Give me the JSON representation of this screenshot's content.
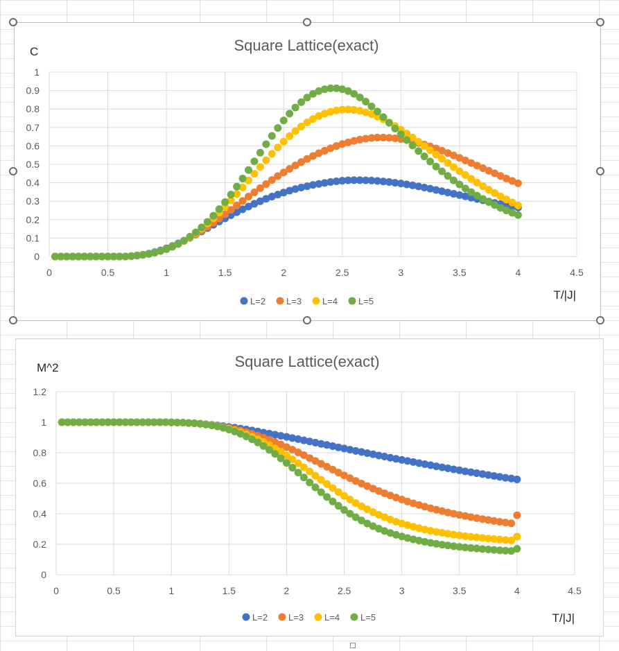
{
  "chart_data": [
    {
      "type": "scatter",
      "title": "Square Lattice(exact)",
      "xlabel": "T/|J|",
      "ylabel": "C",
      "xlim": [
        0,
        4.5
      ],
      "ylim": [
        0,
        1
      ],
      "xticks": [
        "0",
        "0.5",
        "1",
        "1.5",
        "2",
        "2.5",
        "3",
        "3.5",
        "4",
        "4.5"
      ],
      "yticks": [
        "0",
        "0.1",
        "0.2",
        "0.3",
        "0.4",
        "0.5",
        "0.6",
        "0.7",
        "0.8",
        "0.9",
        "1"
      ],
      "grid": true,
      "legend": "bottom",
      "x": [
        0.05,
        0.1,
        0.15,
        0.2,
        0.25,
        0.3,
        0.35,
        0.4,
        0.45,
        0.5,
        0.55,
        0.6,
        0.65,
        0.7,
        0.75,
        0.8,
        0.85,
        0.9,
        0.95,
        1.0,
        1.05,
        1.1,
        1.15,
        1.2,
        1.25,
        1.3,
        1.35,
        1.4,
        1.45,
        1.5,
        1.55,
        1.6,
        1.65,
        1.7,
        1.75,
        1.8,
        1.85,
        1.9,
        1.95,
        2.0,
        2.05,
        2.1,
        2.15,
        2.2,
        2.25,
        2.3,
        2.35,
        2.4,
        2.45,
        2.5,
        2.55,
        2.6,
        2.65,
        2.7,
        2.75,
        2.8,
        2.85,
        2.9,
        2.95,
        3.0,
        3.05,
        3.1,
        3.15,
        3.2,
        3.25,
        3.3,
        3.35,
        3.4,
        3.45,
        3.5,
        3.55,
        3.6,
        3.65,
        3.7,
        3.75,
        3.8,
        3.85,
        3.9,
        3.95,
        4.0
      ],
      "series": [
        {
          "name": "L=2",
          "color": "#4472c4",
          "values": [
            0,
            0,
            0,
            0,
            0,
            0,
            0,
            0,
            0,
            0,
            0,
            0,
            0,
            0.003,
            0.006,
            0.01,
            0.016,
            0.024,
            0.033,
            0.044,
            0.057,
            0.071,
            0.086,
            0.102,
            0.119,
            0.136,
            0.154,
            0.172,
            0.19,
            0.207,
            0.224,
            0.24,
            0.256,
            0.271,
            0.286,
            0.3,
            0.313,
            0.325,
            0.336,
            0.347,
            0.357,
            0.366,
            0.374,
            0.381,
            0.388,
            0.394,
            0.399,
            0.404,
            0.408,
            0.411,
            0.413,
            0.414,
            0.414,
            0.413,
            0.412,
            0.41,
            0.407,
            0.404,
            0.4,
            0.396,
            0.391,
            0.386,
            0.38,
            0.374,
            0.368,
            0.361,
            0.354,
            0.347,
            0.34,
            0.333,
            0.326,
            0.319,
            0.312,
            0.305,
            0.298,
            0.291,
            0.285,
            0.278,
            0.272,
            0.266
          ]
        },
        {
          "name": "L=3",
          "color": "#ed7d31",
          "values": [
            0,
            0,
            0,
            0,
            0,
            0,
            0,
            0,
            0,
            0,
            0,
            0,
            0,
            0.002,
            0.005,
            0.009,
            0.014,
            0.021,
            0.03,
            0.041,
            0.054,
            0.068,
            0.084,
            0.101,
            0.12,
            0.14,
            0.161,
            0.183,
            0.206,
            0.229,
            0.253,
            0.277,
            0.301,
            0.325,
            0.348,
            0.371,
            0.393,
            0.415,
            0.436,
            0.456,
            0.475,
            0.494,
            0.512,
            0.529,
            0.545,
            0.56,
            0.574,
            0.587,
            0.599,
            0.61,
            0.619,
            0.627,
            0.634,
            0.639,
            0.643,
            0.645,
            0.645,
            0.644,
            0.641,
            0.637,
            0.631,
            0.624,
            0.616,
            0.607,
            0.597,
            0.586,
            0.574,
            0.561,
            0.548,
            0.535,
            0.521,
            0.507,
            0.493,
            0.479,
            0.465,
            0.451,
            0.437,
            0.423,
            0.41,
            0.397
          ]
        },
        {
          "name": "L=4",
          "color": "#ffc000",
          "values": [
            0,
            0,
            0,
            0,
            0,
            0,
            0,
            0,
            0,
            0,
            0,
            0,
            0,
            0.002,
            0.005,
            0.009,
            0.014,
            0.021,
            0.03,
            0.04,
            0.053,
            0.068,
            0.085,
            0.105,
            0.127,
            0.151,
            0.178,
            0.207,
            0.238,
            0.27,
            0.304,
            0.339,
            0.375,
            0.412,
            0.449,
            0.486,
            0.522,
            0.557,
            0.591,
            0.623,
            0.653,
            0.68,
            0.705,
            0.727,
            0.746,
            0.762,
            0.775,
            0.785,
            0.792,
            0.796,
            0.797,
            0.795,
            0.79,
            0.782,
            0.772,
            0.759,
            0.744,
            0.727,
            0.708,
            0.688,
            0.667,
            0.645,
            0.622,
            0.599,
            0.576,
            0.553,
            0.53,
            0.507,
            0.485,
            0.463,
            0.442,
            0.421,
            0.401,
            0.381,
            0.362,
            0.344,
            0.326,
            0.309,
            0.293,
            0.277
          ]
        },
        {
          "name": "L=5",
          "color": "#70ad47",
          "values": [
            0,
            0,
            0,
            0,
            0,
            0,
            0,
            0,
            0,
            0,
            0,
            0,
            0,
            0.002,
            0.005,
            0.009,
            0.014,
            0.021,
            0.03,
            0.04,
            0.053,
            0.068,
            0.086,
            0.107,
            0.131,
            0.158,
            0.188,
            0.221,
            0.257,
            0.295,
            0.336,
            0.379,
            0.423,
            0.469,
            0.516,
            0.563,
            0.609,
            0.654,
            0.697,
            0.738,
            0.775,
            0.808,
            0.837,
            0.862,
            0.882,
            0.897,
            0.907,
            0.912,
            0.912,
            0.907,
            0.897,
            0.882,
            0.863,
            0.84,
            0.814,
            0.786,
            0.756,
            0.725,
            0.694,
            0.663,
            0.632,
            0.602,
            0.572,
            0.543,
            0.515,
            0.488,
            0.462,
            0.437,
            0.413,
            0.391,
            0.369,
            0.349,
            0.33,
            0.312,
            0.295,
            0.279,
            0.264,
            0.25,
            0.237,
            0.225
          ]
        }
      ]
    },
    {
      "type": "scatter",
      "title": "Square Lattice(exact)",
      "xlabel": "T/|J|",
      "ylabel": "M^2",
      "xlim": [
        0,
        4.5
      ],
      "ylim": [
        0,
        1.2
      ],
      "xticks": [
        "0",
        "0.5",
        "1",
        "1.5",
        "2",
        "2.5",
        "3",
        "3.5",
        "4",
        "4.5"
      ],
      "yticks": [
        "0",
        "0.2",
        "0.4",
        "0.6",
        "0.8",
        "1",
        "1.2"
      ],
      "grid": true,
      "legend": "bottom",
      "x": [
        0.05,
        0.1,
        0.15,
        0.2,
        0.25,
        0.3,
        0.35,
        0.4,
        0.45,
        0.5,
        0.55,
        0.6,
        0.65,
        0.7,
        0.75,
        0.8,
        0.85,
        0.9,
        0.95,
        1.0,
        1.05,
        1.1,
        1.15,
        1.2,
        1.25,
        1.3,
        1.35,
        1.4,
        1.45,
        1.5,
        1.55,
        1.6,
        1.65,
        1.7,
        1.75,
        1.8,
        1.85,
        1.9,
        1.95,
        2.0,
        2.05,
        2.1,
        2.15,
        2.2,
        2.25,
        2.3,
        2.35,
        2.4,
        2.45,
        2.5,
        2.55,
        2.6,
        2.65,
        2.7,
        2.75,
        2.8,
        2.85,
        2.9,
        2.95,
        3.0,
        3.05,
        3.1,
        3.15,
        3.2,
        3.25,
        3.3,
        3.35,
        3.4,
        3.45,
        3.5,
        3.55,
        3.6,
        3.65,
        3.7,
        3.75,
        3.8,
        3.85,
        3.9,
        3.95,
        4.0
      ],
      "series": [
        {
          "name": "L=2",
          "color": "#4472c4",
          "values": [
            1,
            1,
            1,
            1,
            1,
            1,
            1,
            1,
            1,
            1,
            1,
            1,
            1,
            1,
            1,
            1,
            1,
            1,
            1,
            0.999,
            0.998,
            0.997,
            0.995,
            0.993,
            0.99,
            0.987,
            0.983,
            0.979,
            0.974,
            0.969,
            0.964,
            0.958,
            0.952,
            0.946,
            0.939,
            0.932,
            0.925,
            0.918,
            0.911,
            0.904,
            0.896,
            0.889,
            0.881,
            0.874,
            0.866,
            0.858,
            0.851,
            0.843,
            0.835,
            0.828,
            0.82,
            0.812,
            0.805,
            0.797,
            0.79,
            0.782,
            0.775,
            0.767,
            0.76,
            0.753,
            0.746,
            0.739,
            0.732,
            0.725,
            0.718,
            0.711,
            0.704,
            0.698,
            0.691,
            0.685,
            0.678,
            0.672,
            0.666,
            0.66,
            0.654,
            0.648,
            0.642,
            0.636,
            0.631,
            0.625
          ]
        },
        {
          "name": "L=3",
          "color": "#ed7d31",
          "values": [
            1,
            1,
            1,
            1,
            1,
            1,
            1,
            1,
            1,
            1,
            1,
            1,
            1,
            1,
            1,
            1,
            1,
            1,
            1,
            0.999,
            0.998,
            0.997,
            0.995,
            0.993,
            0.99,
            0.986,
            0.981,
            0.976,
            0.969,
            0.962,
            0.954,
            0.945,
            0.935,
            0.924,
            0.912,
            0.899,
            0.885,
            0.87,
            0.854,
            0.837,
            0.82,
            0.802,
            0.784,
            0.765,
            0.746,
            0.727,
            0.708,
            0.689,
            0.67,
            0.651,
            0.633,
            0.615,
            0.598,
            0.581,
            0.565,
            0.549,
            0.534,
            0.52,
            0.506,
            0.493,
            0.48,
            0.468,
            0.457,
            0.446,
            0.436,
            0.426,
            0.417,
            0.408,
            0.4,
            0.392,
            0.385,
            0.378,
            0.371,
            0.365,
            0.359,
            0.353,
            0.347,
            0.342,
            0.337,
            0.39
          ]
        },
        {
          "name": "L=4",
          "color": "#ffc000",
          "values": [
            1,
            1,
            1,
            1,
            1,
            1,
            1,
            1,
            1,
            1,
            1,
            1,
            1,
            1,
            1,
            1,
            1,
            1,
            1,
            0.999,
            0.998,
            0.997,
            0.995,
            0.993,
            0.99,
            0.986,
            0.98,
            0.974,
            0.966,
            0.957,
            0.946,
            0.934,
            0.92,
            0.905,
            0.888,
            0.87,
            0.85,
            0.829,
            0.806,
            0.782,
            0.757,
            0.731,
            0.704,
            0.677,
            0.649,
            0.622,
            0.595,
            0.568,
            0.542,
            0.517,
            0.493,
            0.47,
            0.449,
            0.429,
            0.41,
            0.393,
            0.377,
            0.362,
            0.348,
            0.336,
            0.325,
            0.314,
            0.305,
            0.296,
            0.288,
            0.281,
            0.275,
            0.269,
            0.263,
            0.258,
            0.253,
            0.249,
            0.245,
            0.241,
            0.237,
            0.234,
            0.231,
            0.228,
            0.225,
            0.25
          ]
        },
        {
          "name": "L=5",
          "color": "#70ad47",
          "values": [
            1,
            1,
            1,
            1,
            1,
            1,
            1,
            1,
            1,
            1,
            1,
            1,
            1,
            1,
            1,
            1,
            1,
            1,
            1,
            0.999,
            0.998,
            0.997,
            0.995,
            0.993,
            0.99,
            0.985,
            0.979,
            0.972,
            0.963,
            0.952,
            0.939,
            0.924,
            0.907,
            0.888,
            0.867,
            0.844,
            0.819,
            0.792,
            0.763,
            0.733,
            0.702,
            0.67,
            0.638,
            0.605,
            0.573,
            0.541,
            0.51,
            0.48,
            0.452,
            0.425,
            0.4,
            0.377,
            0.356,
            0.336,
            0.318,
            0.302,
            0.287,
            0.274,
            0.262,
            0.251,
            0.241,
            0.232,
            0.224,
            0.216,
            0.209,
            0.203,
            0.197,
            0.192,
            0.187,
            0.183,
            0.179,
            0.175,
            0.172,
            0.169,
            0.166,
            0.163,
            0.16,
            0.158,
            0.156,
            0.17
          ]
        }
      ]
    }
  ]
}
